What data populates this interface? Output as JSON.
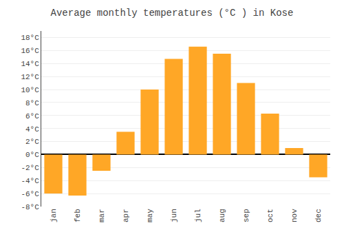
{
  "chart_data": {
    "type": "bar",
    "title": "Average monthly temperatures (°C ) in Kose",
    "categories": [
      "jan",
      "feb",
      "mar",
      "apr",
      "may",
      "jun",
      "jul",
      "aug",
      "sep",
      "oct",
      "nov",
      "dec"
    ],
    "values": [
      -6.0,
      -6.3,
      -2.5,
      3.5,
      10.0,
      14.7,
      16.6,
      15.5,
      11.0,
      6.3,
      1.0,
      -3.5
    ],
    "color": "#FFA726",
    "ylim": [
      -8,
      19
    ],
    "yticks": [
      {
        "value": -8,
        "label": "-8°C"
      },
      {
        "value": -6,
        "label": "-6°C"
      },
      {
        "value": -4,
        "label": "-4°C"
      },
      {
        "value": -2,
        "label": "-2°C"
      },
      {
        "value": 0,
        "label": "0°C"
      },
      {
        "value": 2,
        "label": "2°C"
      },
      {
        "value": 4,
        "label": "4°C"
      },
      {
        "value": 6,
        "label": "6°C"
      },
      {
        "value": 8,
        "label": "8°C"
      },
      {
        "value": 10,
        "label": "10°C"
      },
      {
        "value": 12,
        "label": "12°C"
      },
      {
        "value": 14,
        "label": "14°C"
      },
      {
        "value": 16,
        "label": "16°C"
      },
      {
        "value": 18,
        "label": "18°C"
      }
    ],
    "grid": true
  }
}
